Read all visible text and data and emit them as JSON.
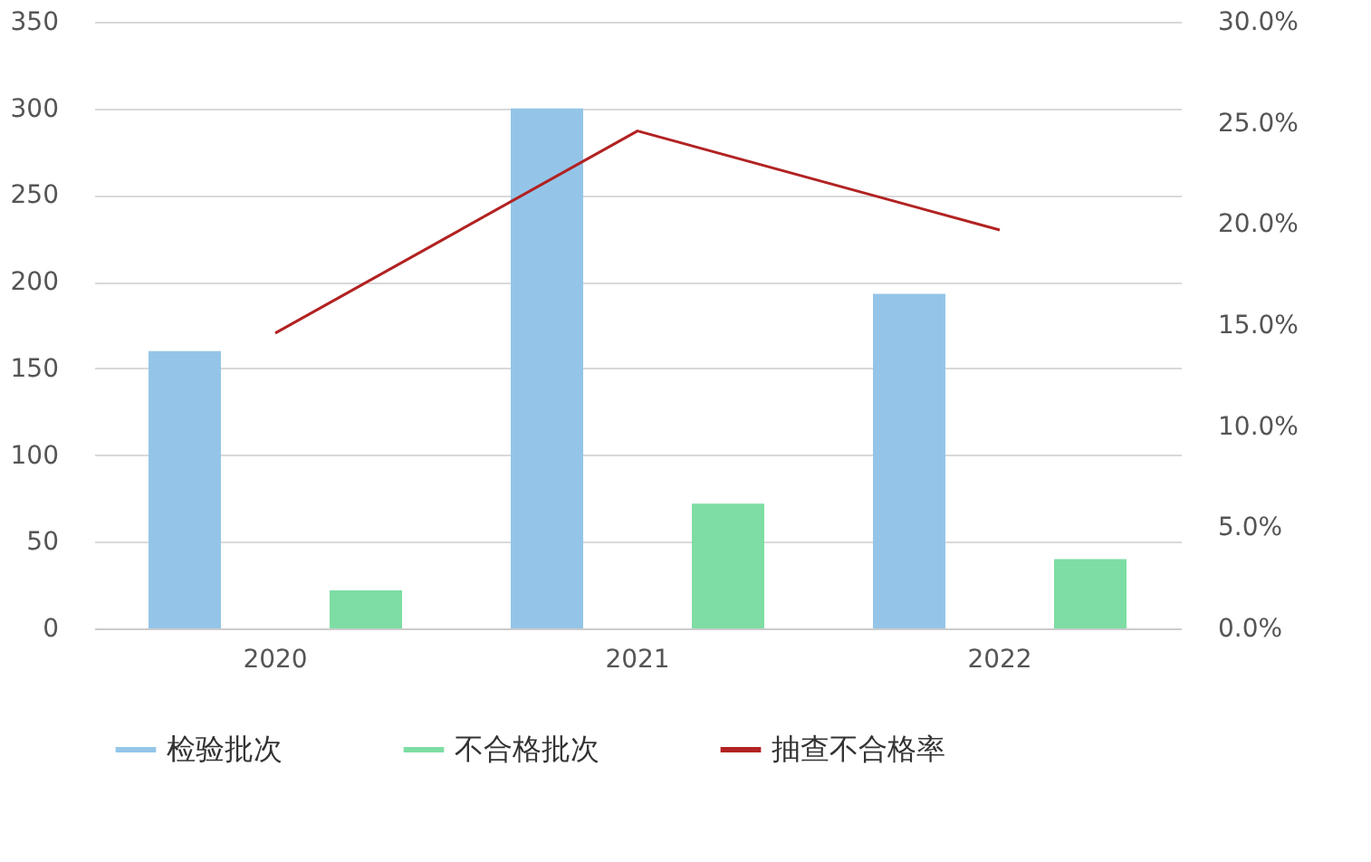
{
  "chart_data": {
    "type": "bar",
    "categories": [
      "2020",
      "2021",
      "2022"
    ],
    "series": [
      {
        "name": "检验批次",
        "color": "#94c5e8",
        "values": [
          160,
          300,
          193
        ]
      },
      {
        "name": "不合格批次",
        "color": "#7ddda4",
        "values": [
          22,
          72,
          40
        ]
      },
      {
        "name": "抽查不合格率",
        "color": "#b22222",
        "type": "line",
        "axis": "y2",
        "values": [
          14.6,
          24.6,
          19.7
        ]
      }
    ],
    "ylim": [
      0,
      350
    ],
    "yticks": [
      0,
      50,
      100,
      150,
      200,
      250,
      300,
      350
    ],
    "y2lim": [
      0,
      30
    ],
    "y2ticks": [
      {
        "value": 0,
        "label": "0.0%"
      },
      {
        "value": 5,
        "label": "5.0%"
      },
      {
        "value": 10,
        "label": "10.0%"
      },
      {
        "value": 15,
        "label": "15.0%"
      },
      {
        "value": 20,
        "label": "20.0%"
      },
      {
        "value": 25,
        "label": "25.0%"
      },
      {
        "value": 30,
        "label": "30.0%"
      }
    ],
    "grid": "y",
    "legend": "bottom",
    "marker": "none",
    "line_style": "solid"
  }
}
